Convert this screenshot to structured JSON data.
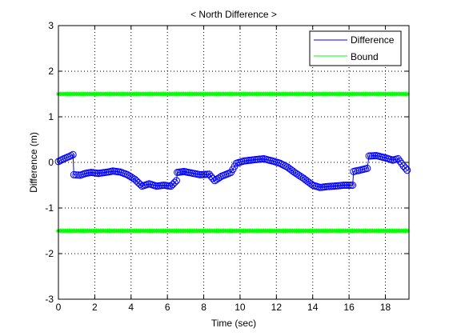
{
  "chart_data": {
    "type": "scatter",
    "title": "< North Difference >",
    "xlabel": "Time (sec)",
    "ylabel": "Difference (m)",
    "xlim": [
      0,
      19.3
    ],
    "ylim": [
      -3,
      3
    ],
    "xticks": [
      0,
      2,
      4,
      6,
      8,
      10,
      12,
      14,
      16,
      18
    ],
    "yticks": [
      -3,
      -2,
      -1,
      0,
      1,
      2,
      3
    ],
    "xtick_labels": [
      "0",
      "2",
      "4",
      "6",
      "8",
      "10",
      "12",
      "14",
      "16",
      "18"
    ],
    "ytick_labels": [
      "-3",
      "-2",
      "-1",
      "0",
      "1",
      "2",
      "3"
    ],
    "grid": true,
    "legend_position": "top-right",
    "series": [
      {
        "name": "Difference",
        "color": "#0000ff",
        "marker": "circle",
        "keypoints": [
          [
            0.0,
            0.02
          ],
          [
            0.3,
            0.08
          ],
          [
            0.6,
            0.13
          ],
          [
            0.8,
            0.17
          ],
          [
            0.85,
            -0.27
          ],
          [
            1.2,
            -0.28
          ],
          [
            1.5,
            -0.24
          ],
          [
            1.8,
            -0.22
          ],
          [
            2.2,
            -0.24
          ],
          [
            2.6,
            -0.22
          ],
          [
            3.0,
            -0.19
          ],
          [
            3.4,
            -0.21
          ],
          [
            3.8,
            -0.27
          ],
          [
            4.2,
            -0.37
          ],
          [
            4.6,
            -0.52
          ],
          [
            5.0,
            -0.47
          ],
          [
            5.4,
            -0.52
          ],
          [
            5.8,
            -0.5
          ],
          [
            6.2,
            -0.52
          ],
          [
            6.5,
            -0.4
          ],
          [
            6.55,
            -0.22
          ],
          [
            6.9,
            -0.2
          ],
          [
            7.3,
            -0.23
          ],
          [
            7.8,
            -0.27
          ],
          [
            8.3,
            -0.26
          ],
          [
            8.6,
            -0.4
          ],
          [
            9.0,
            -0.3
          ],
          [
            9.5,
            -0.22
          ],
          [
            9.8,
            -0.02
          ],
          [
            10.2,
            0.03
          ],
          [
            10.8,
            0.06
          ],
          [
            11.3,
            0.08
          ],
          [
            11.8,
            0.03
          ],
          [
            12.2,
            -0.02
          ],
          [
            12.6,
            -0.1
          ],
          [
            13.0,
            -0.22
          ],
          [
            13.5,
            -0.35
          ],
          [
            14.0,
            -0.5
          ],
          [
            14.4,
            -0.55
          ],
          [
            14.8,
            -0.53
          ],
          [
            15.2,
            -0.52
          ],
          [
            15.7,
            -0.5
          ],
          [
            16.2,
            -0.5
          ],
          [
            16.25,
            -0.2
          ],
          [
            16.7,
            -0.16
          ],
          [
            17.0,
            -0.13
          ],
          [
            17.1,
            0.14
          ],
          [
            17.5,
            0.15
          ],
          [
            18.0,
            0.1
          ],
          [
            18.4,
            0.05
          ],
          [
            18.7,
            0.08
          ],
          [
            19.0,
            -0.08
          ],
          [
            19.2,
            -0.17
          ]
        ]
      },
      {
        "name": "Bound",
        "color": "#00ff00",
        "marker": "asterisk",
        "values_upper": 1.5,
        "values_lower": -1.5,
        "x_range": [
          0,
          19.2
        ]
      }
    ]
  }
}
